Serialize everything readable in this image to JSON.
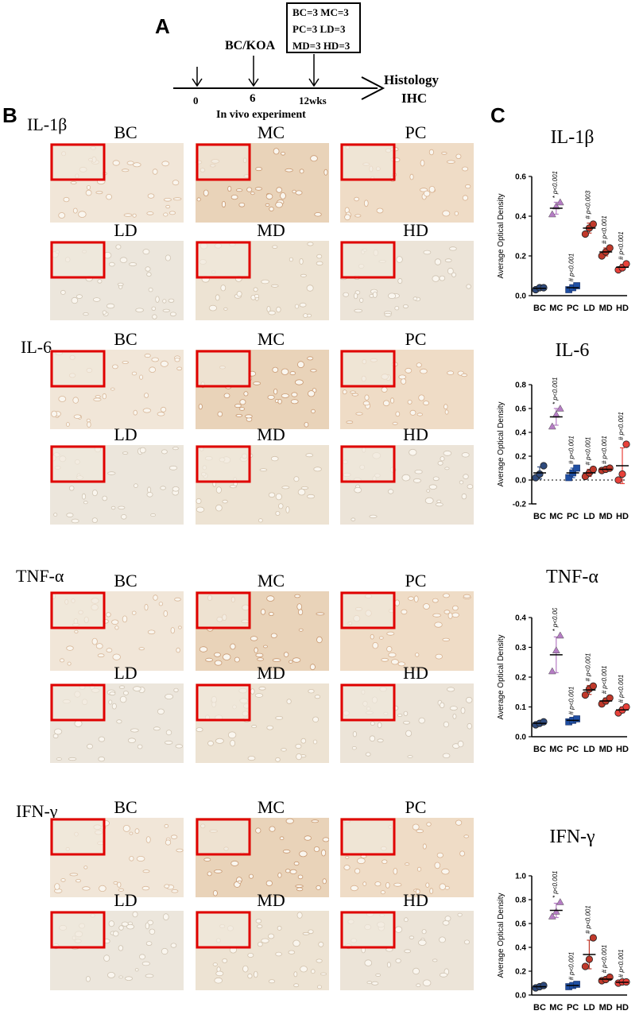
{
  "panel_a": {
    "letter": "A",
    "box_lines": [
      "BC=3  MC=3",
      "PC=3  LD=3",
      "MD=3  HD=3"
    ],
    "induction_label": "BC/KOA",
    "ticks": [
      "0",
      "6",
      "12wks"
    ],
    "axis_caption": "In vivo experiment",
    "endpoint_line1": "Histology",
    "endpoint_line2": "IHC"
  },
  "panel_b": {
    "letter": "B",
    "rows": [
      {
        "marker": "IL-1β",
        "groups": [
          "BC",
          "MC",
          "PC",
          "LD",
          "MD",
          "HD"
        ]
      },
      {
        "marker": "IL-6",
        "groups": [
          "BC",
          "MC",
          "PC",
          "LD",
          "MD",
          "HD"
        ]
      },
      {
        "marker": "TNF-α",
        "groups": [
          "BC",
          "MC",
          "PC",
          "LD",
          "MD",
          "HD"
        ]
      },
      {
        "marker": "IFN-γ",
        "groups": [
          "BC",
          "MC",
          "PC",
          "LD",
          "MD",
          "HD"
        ]
      }
    ],
    "colors": {
      "stain_bg": "#ead6c0",
      "inset_border": "#e00000"
    }
  },
  "panel_c": {
    "letter": "C"
  },
  "colors": {
    "BC": "#2e4a7d",
    "MC": "#b57cc4",
    "PC": "#1f4fa3",
    "LD": "#c0392b",
    "MD": "#c0392b",
    "HD": "#e8413a"
  },
  "chart_data": [
    {
      "type": "scatter",
      "title": "IL-1β",
      "ylabel": "Average Optical Density",
      "categories": [
        "BC",
        "MC",
        "PC",
        "LD",
        "MD",
        "HD"
      ],
      "ylim": [
        0,
        0.6
      ],
      "yticks": [
        "0.0",
        "0.2",
        "0.4",
        "0.6"
      ],
      "points": [
        [
          0.03,
          0.04,
          0.04
        ],
        [
          0.41,
          0.45,
          0.47
        ],
        [
          0.03,
          0.04,
          0.05
        ],
        [
          0.31,
          0.34,
          0.36
        ],
        [
          0.2,
          0.22,
          0.24
        ],
        [
          0.13,
          0.14,
          0.16
        ]
      ],
      "means": [
        0.037,
        0.44,
        0.04,
        0.34,
        0.22,
        0.143
      ],
      "sd": [
        0.005,
        0.03,
        0.01,
        0.025,
        0.02,
        0.015
      ],
      "annotations": [
        "",
        "* p<0.001",
        "# p<0.001",
        "# p<0.003",
        "# p<0.001",
        "# p<0.001"
      ],
      "zero_line": false
    },
    {
      "type": "scatter",
      "title": "IL-6",
      "ylabel": "Average Optical Density",
      "categories": [
        "BC",
        "MC",
        "PC",
        "LD",
        "MD",
        "HD"
      ],
      "ylim": [
        -0.2,
        0.8
      ],
      "yticks": [
        "-0.2",
        "0.0",
        "0.2",
        "0.4",
        "0.6",
        "0.8"
      ],
      "points": [
        [
          0.02,
          0.05,
          0.12
        ],
        [
          0.45,
          0.55,
          0.6
        ],
        [
          0.02,
          0.06,
          0.1
        ],
        [
          0.03,
          0.06,
          0.09
        ],
        [
          0.08,
          0.09,
          0.1
        ],
        [
          0.0,
          0.05,
          0.3
        ]
      ],
      "means": [
        0.06,
        0.53,
        0.06,
        0.06,
        0.09,
        0.12
      ],
      "sd": [
        0.05,
        0.07,
        0.04,
        0.03,
        0.01,
        0.15
      ],
      "annotations": [
        "",
        "* p<0.001",
        "# p<0.001",
        "# p<0.001",
        "# p<0.001",
        "# p<0.001"
      ],
      "zero_line": true
    },
    {
      "type": "scatter",
      "title": "TNF-α",
      "ylabel": "Average Optical Density",
      "categories": [
        "BC",
        "MC",
        "PC",
        "LD",
        "MD",
        "HD"
      ],
      "ylim": [
        0,
        0.4
      ],
      "yticks": [
        "0.0",
        "0.1",
        "0.2",
        "0.3",
        "0.4"
      ],
      "points": [
        [
          0.04,
          0.045,
          0.05
        ],
        [
          0.22,
          0.29,
          0.34
        ],
        [
          0.05,
          0.055,
          0.06
        ],
        [
          0.14,
          0.16,
          0.17
        ],
        [
          0.11,
          0.12,
          0.13
        ],
        [
          0.08,
          0.09,
          0.1
        ]
      ],
      "means": [
        0.045,
        0.275,
        0.055,
        0.157,
        0.12,
        0.09
      ],
      "sd": [
        0.005,
        0.06,
        0.005,
        0.015,
        0.01,
        0.01
      ],
      "annotations": [
        "",
        "* p<0.001",
        "# p<0.001",
        "# p<0.001",
        "# p<0.001",
        "# p<0.001"
      ],
      "zero_line": false
    },
    {
      "type": "scatter",
      "title": "IFN-γ",
      "ylabel": "Average Optical Density",
      "categories": [
        "BC",
        "MC",
        "PC",
        "LD",
        "MD",
        "HD"
      ],
      "ylim": [
        0,
        1.0
      ],
      "yticks": [
        "0.0",
        "0.2",
        "0.4",
        "0.6",
        "0.8",
        "1.0"
      ],
      "points": [
        [
          0.06,
          0.07,
          0.08
        ],
        [
          0.66,
          0.7,
          0.78
        ],
        [
          0.07,
          0.08,
          0.09
        ],
        [
          0.24,
          0.3,
          0.48
        ],
        [
          0.12,
          0.13,
          0.15
        ],
        [
          0.1,
          0.11,
          0.11
        ]
      ],
      "means": [
        0.07,
        0.71,
        0.08,
        0.34,
        0.133,
        0.107
      ],
      "sd": [
        0.01,
        0.06,
        0.01,
        0.12,
        0.015,
        0.005
      ],
      "annotations": [
        "",
        "* p<0.001",
        "# p<0.001",
        "# p<0.001",
        "# p<0.001",
        "# p<0.001"
      ],
      "zero_line": false
    }
  ]
}
